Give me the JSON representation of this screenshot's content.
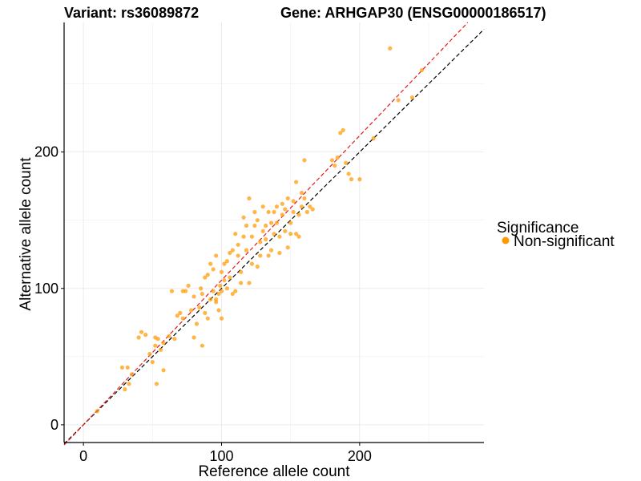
{
  "chart_data": {
    "type": "scatter",
    "title_left": "Variant: rs36089872",
    "title_right": "Gene: ARHGAP30 (ENSG00000186517)",
    "xlabel": "Reference allele count",
    "ylabel": "Alternative allele count",
    "xlim": [
      -14,
      290
    ],
    "ylim": [
      -13,
      295
    ],
    "x_ticks": [
      0,
      100,
      200
    ],
    "y_ticks": [
      0,
      100,
      200
    ],
    "grid": true,
    "legend": {
      "title": "Significance",
      "position": "right",
      "entries": [
        {
          "label": "Non-significant",
          "color": "#ff9900"
        }
      ]
    },
    "reference_lines": [
      {
        "name": "identity",
        "slope": 1.0,
        "intercept": 0,
        "color": "#000000",
        "style": "dashed"
      },
      {
        "name": "fit",
        "slope": 1.06,
        "intercept": 0,
        "color": "#e41a1c",
        "style": "dashed"
      }
    ],
    "series": [
      {
        "name": "Non-significant",
        "color": "#ff9900",
        "points": [
          [
            10,
            10
          ],
          [
            28,
            42
          ],
          [
            30,
            26
          ],
          [
            32,
            42
          ],
          [
            33,
            30
          ],
          [
            35,
            37
          ],
          [
            40,
            64
          ],
          [
            42,
            68
          ],
          [
            45,
            66
          ],
          [
            48,
            52
          ],
          [
            50,
            46
          ],
          [
            52,
            64
          ],
          [
            52,
            58
          ],
          [
            53,
            30
          ],
          [
            54,
            63
          ],
          [
            56,
            55
          ],
          [
            58,
            40
          ],
          [
            58,
            60
          ],
          [
            62,
            65
          ],
          [
            64,
            98
          ],
          [
            66,
            63
          ],
          [
            68,
            80
          ],
          [
            70,
            82
          ],
          [
            72,
            78
          ],
          [
            72,
            98
          ],
          [
            74,
            98
          ],
          [
            76,
            102
          ],
          [
            78,
            84
          ],
          [
            80,
            64
          ],
          [
            80,
            94
          ],
          [
            82,
            74
          ],
          [
            84,
            86
          ],
          [
            85,
            100
          ],
          [
            86,
            96
          ],
          [
            86,
            58
          ],
          [
            88,
            108
          ],
          [
            88,
            82
          ],
          [
            90,
            78
          ],
          [
            90,
            110
          ],
          [
            92,
            92
          ],
          [
            92,
            118
          ],
          [
            94,
            98
          ],
          [
            94,
            114
          ],
          [
            96,
            90
          ],
          [
            96,
            92
          ],
          [
            96,
            124
          ],
          [
            98,
            84
          ],
          [
            98,
            96
          ],
          [
            99,
            102
          ],
          [
            100,
            112
          ],
          [
            100,
            78
          ],
          [
            100,
            98
          ],
          [
            102,
            106
          ],
          [
            102,
            118
          ],
          [
            104,
            120
          ],
          [
            104,
            100
          ],
          [
            106,
            108
          ],
          [
            106,
            126
          ],
          [
            108,
            128
          ],
          [
            108,
            96
          ],
          [
            110,
            98
          ],
          [
            110,
            140
          ],
          [
            112,
            124
          ],
          [
            112,
            132
          ],
          [
            114,
            112
          ],
          [
            114,
            104
          ],
          [
            116,
            138
          ],
          [
            116,
            152
          ],
          [
            118,
            146
          ],
          [
            118,
            128
          ],
          [
            120,
            166
          ],
          [
            120,
            104
          ],
          [
            122,
            118
          ],
          [
            122,
            138
          ],
          [
            124,
            146
          ],
          [
            124,
            156
          ],
          [
            126,
            150
          ],
          [
            126,
            116
          ],
          [
            128,
            124
          ],
          [
            128,
            134
          ],
          [
            130,
            160
          ],
          [
            130,
            142
          ],
          [
            132,
            136
          ],
          [
            132,
            146
          ],
          [
            134,
            124
          ],
          [
            134,
            156
          ],
          [
            136,
            128
          ],
          [
            136,
            148
          ],
          [
            138,
            140
          ],
          [
            138,
            156
          ],
          [
            140,
            160
          ],
          [
            140,
            148
          ],
          [
            142,
            126
          ],
          [
            142,
            138
          ],
          [
            144,
            162
          ],
          [
            144,
            154
          ],
          [
            146,
            158
          ],
          [
            146,
            142
          ],
          [
            148,
            166
          ],
          [
            148,
            130
          ],
          [
            150,
            140
          ],
          [
            150,
            148
          ],
          [
            152,
            156
          ],
          [
            152,
            164
          ],
          [
            154,
            178
          ],
          [
            154,
            140
          ],
          [
            156,
            154
          ],
          [
            156,
            138
          ],
          [
            158,
            170
          ],
          [
            158,
            160
          ],
          [
            160,
            194
          ],
          [
            160,
            166
          ],
          [
            162,
            156
          ],
          [
            164,
            160
          ],
          [
            166,
            158
          ],
          [
            180,
            194
          ],
          [
            182,
            190
          ],
          [
            184,
            196
          ],
          [
            186,
            214
          ],
          [
            188,
            216
          ],
          [
            190,
            192
          ],
          [
            192,
            184
          ],
          [
            194,
            180
          ],
          [
            200,
            180
          ],
          [
            210,
            210
          ],
          [
            222,
            276
          ],
          [
            228,
            238
          ],
          [
            238,
            240
          ],
          [
            245,
            260
          ]
        ]
      }
    ]
  }
}
